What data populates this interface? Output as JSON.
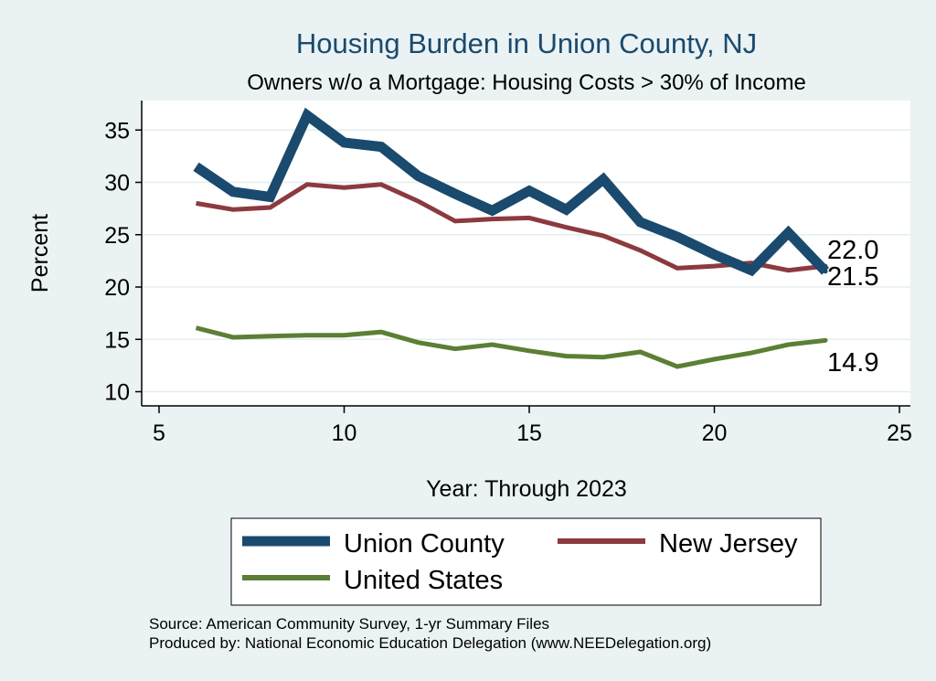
{
  "chart_data": {
    "type": "line",
    "title": "Housing Burden in Union County, NJ",
    "subtitle": "Owners w/o a Mortgage: Housing Costs > 30% of Income",
    "xlabel": "Year: Through 2023",
    "ylabel": "Percent",
    "xlim": [
      5,
      25
    ],
    "ylim": [
      10,
      37
    ],
    "xticks": [
      5,
      10,
      15,
      20,
      25
    ],
    "yticks": [
      10,
      15,
      20,
      25,
      30,
      35
    ],
    "grid": true,
    "legend_position": "bottom",
    "series": [
      {
        "name": "Union County",
        "color": "#1a4a6e",
        "x": [
          6,
          7,
          8,
          9,
          10,
          11,
          12,
          13,
          14,
          15,
          16,
          17,
          18,
          19,
          20,
          21,
          22,
          23
        ],
        "values": [
          31.5,
          29.1,
          28.6,
          36.4,
          33.8,
          33.4,
          30.6,
          28.9,
          27.3,
          29.2,
          27.4,
          30.3,
          26.2,
          24.8,
          23.1,
          21.6,
          25.2,
          21.5
        ],
        "end_label": "21.5"
      },
      {
        "name": "New Jersey",
        "color": "#8c3a3f",
        "x": [
          6,
          7,
          8,
          9,
          10,
          11,
          12,
          13,
          14,
          15,
          16,
          17,
          18,
          19,
          20,
          21,
          22,
          23
        ],
        "values": [
          28.0,
          27.4,
          27.6,
          29.8,
          29.5,
          29.8,
          28.2,
          26.3,
          26.5,
          26.6,
          25.7,
          24.9,
          23.5,
          21.8,
          22.0,
          22.3,
          21.6,
          22.0
        ],
        "end_label": "22.0"
      },
      {
        "name": "United States",
        "color": "#5b7f34",
        "x": [
          6,
          7,
          8,
          9,
          10,
          11,
          12,
          13,
          14,
          15,
          16,
          17,
          18,
          19,
          20,
          21,
          22,
          23
        ],
        "values": [
          16.1,
          15.2,
          15.3,
          15.4,
          15.4,
          15.7,
          14.7,
          14.1,
          14.5,
          13.9,
          13.4,
          13.3,
          13.8,
          12.4,
          13.1,
          13.7,
          14.5,
          14.9
        ],
        "end_label": "14.9"
      }
    ]
  },
  "notes": {
    "source": "Source: American Community Survey, 1-yr Summary Files",
    "produced": "Produced by: National Economic Education Delegation (www.NEEDelegation.org)"
  }
}
